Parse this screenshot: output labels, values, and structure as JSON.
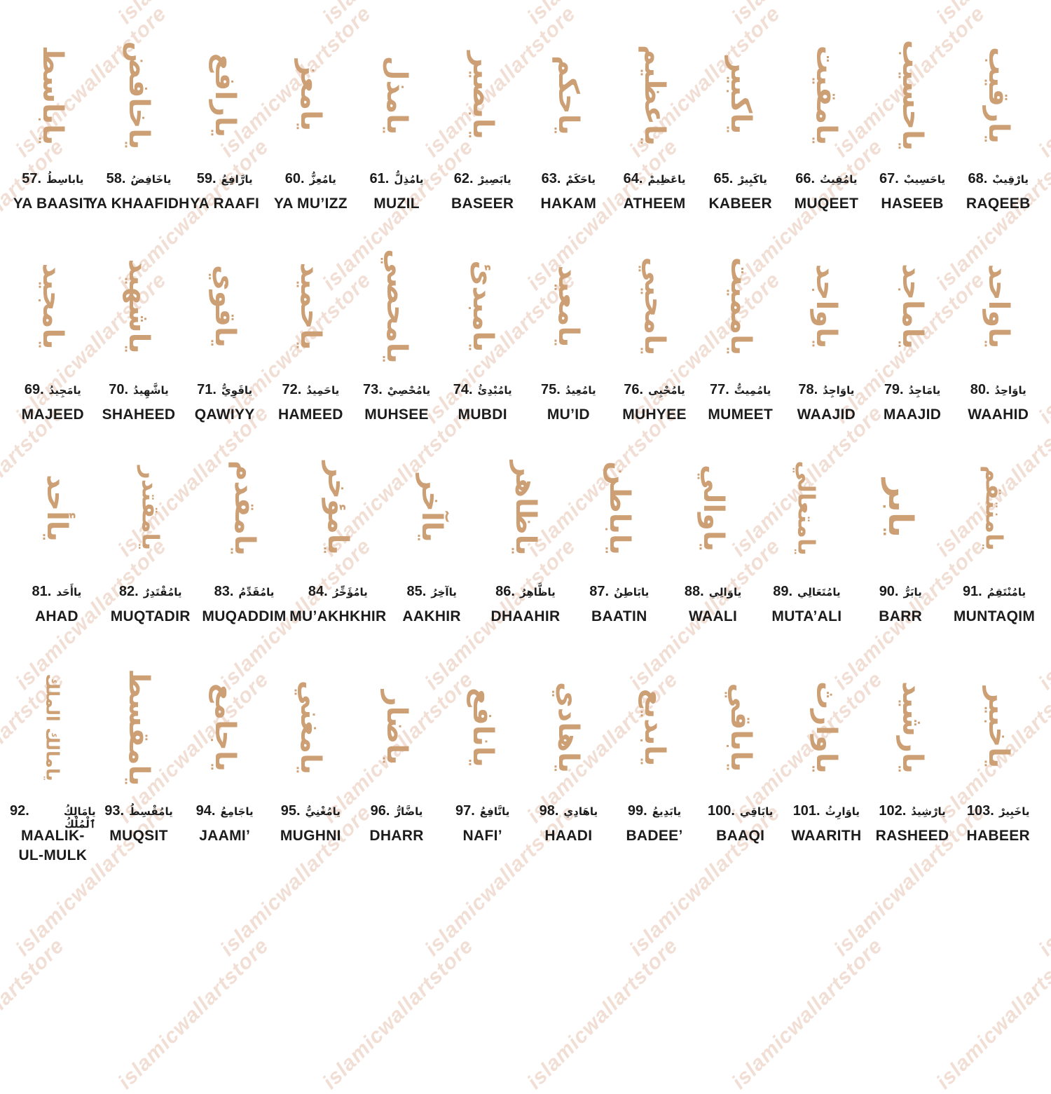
{
  "colors": {
    "calligraphy": "#cd9f74",
    "label_text": "#1c1c1c",
    "watermark": "#f1ded4",
    "background": "#ffffff"
  },
  "watermark": {
    "text": "islamicwallartstore"
  },
  "rows": [
    {
      "items": [
        {
          "num": "57.",
          "arabic": "ياباسِطُ",
          "calligraphy": "ياباسط",
          "latin": "YA BAASIT"
        },
        {
          "num": "58.",
          "arabic": "ياخَافِضُ",
          "calligraphy": "ياخافض",
          "latin": "YA KHAAFIDH"
        },
        {
          "num": "59.",
          "arabic": "يارَّافِعُ",
          "calligraphy": "يارافع",
          "latin": "YA RAAFI"
        },
        {
          "num": "60.",
          "arabic": "يامُعِزُّ",
          "calligraphy": "يامعز",
          "latin": "YA MU’IZZ"
        },
        {
          "num": "61.",
          "arabic": "يامُذِلُّ",
          "calligraphy": "يامذل",
          "latin": "MUZIL"
        },
        {
          "num": "62.",
          "arabic": "يابَصِيرْ",
          "calligraphy": "يابصير",
          "latin": "BASEER"
        },
        {
          "num": "63.",
          "arabic": "ياحَكَمْ",
          "calligraphy": "ياحكم",
          "latin": "HAKAM"
        },
        {
          "num": "64.",
          "arabic": "ياعَظِيمْ",
          "calligraphy": "ياعظيم",
          "latin": "ATHEEM"
        },
        {
          "num": "65.",
          "arabic": "ياكَبِيرْ",
          "calligraphy": "ياكبير",
          "latin": "KABEER"
        },
        {
          "num": "66.",
          "arabic": "يامُقِيتُ",
          "calligraphy": "يامقيت",
          "latin": "MUQEET"
        },
        {
          "num": "67.",
          "arabic": "ياحَسِيبْ",
          "calligraphy": "ياحسيب",
          "latin": "HASEEB"
        },
        {
          "num": "68.",
          "arabic": "يارْقِيبْ",
          "calligraphy": "يارقيب",
          "latin": "RAQEEB"
        }
      ]
    },
    {
      "items": [
        {
          "num": "69.",
          "arabic": "يامَجِيدُ",
          "calligraphy": "يامجيد",
          "latin": "MAJEED"
        },
        {
          "num": "70.",
          "arabic": "ياشَّهِيدُ",
          "calligraphy": "ياشهيد",
          "latin": "SHAHEED"
        },
        {
          "num": "71.",
          "arabic": "ياقَوِيُّ",
          "calligraphy": "ياقوي",
          "latin": "QAWIYY"
        },
        {
          "num": "72.",
          "arabic": "ياحَمِيدُ",
          "calligraphy": "ياحميد",
          "latin": "HAMEED"
        },
        {
          "num": "73.",
          "arabic": "يامُحْصِيْ",
          "calligraphy": "يامحصي",
          "latin": "MUHSEE"
        },
        {
          "num": "74.",
          "arabic": "يامُبْدِئُ",
          "calligraphy": "يامبدئ",
          "latin": "MUBDI"
        },
        {
          "num": "75.",
          "arabic": "يامُعِيدُ",
          "calligraphy": "يامعيد",
          "latin": "MU’ID"
        },
        {
          "num": "76.",
          "arabic": "يامُحْيِى",
          "calligraphy": "يامحيي",
          "latin": "MUHYEE"
        },
        {
          "num": "77.",
          "arabic": "يامُمِيتُّ",
          "calligraphy": "يامميت",
          "latin": "MUMEET"
        },
        {
          "num": "78.",
          "arabic": "ياوَاجِدُ",
          "calligraphy": "ياواجد",
          "latin": "WAAJID"
        },
        {
          "num": "79.",
          "arabic": "يامَاجِدُ",
          "calligraphy": "ياماجد",
          "latin": "MAAJID"
        },
        {
          "num": "80.",
          "arabic": "ياوَاحِدُ",
          "calligraphy": "ياواحد",
          "latin": "WAAHID"
        }
      ]
    },
    {
      "items": [
        {
          "num": "81.",
          "arabic": "ياأَحَد",
          "calligraphy": "ياأحد",
          "latin": "AHAD"
        },
        {
          "num": "82.",
          "arabic": "يامُقْتَدِرٌ",
          "calligraphy": "يامقتدر",
          "latin": "MUQTADIR"
        },
        {
          "num": "83.",
          "arabic": "يامُقَدِّمُ",
          "calligraphy": "يامقدم",
          "latin": "MUQADDIM"
        },
        {
          "num": "84.",
          "arabic": "يامُؤَخِّرُ",
          "calligraphy": "يامؤخر",
          "latin": "MU’AKHKHIR"
        },
        {
          "num": "85.",
          "arabic": "ياآخِرُ",
          "calligraphy": "ياآخر",
          "latin": "AAKHIR"
        },
        {
          "num": "86.",
          "arabic": "ياظَّاهِرُ",
          "calligraphy": "ياظاهر",
          "latin": "DHAAHIR"
        },
        {
          "num": "87.",
          "arabic": "يابَاطِنُ",
          "calligraphy": "ياباطن",
          "latin": "BAATIN"
        },
        {
          "num": "88.",
          "arabic": "ياوَالِي",
          "calligraphy": "ياوالي",
          "latin": "WAALI"
        },
        {
          "num": "89.",
          "arabic": "يامُتَعَالِي",
          "calligraphy": "يامتعالي",
          "latin": "MUTA’ALI"
        },
        {
          "num": "90.",
          "arabic": "يابَرُّ",
          "calligraphy": "يابر",
          "latin": "BARR"
        },
        {
          "num": "91.",
          "arabic": "يامُنْتَقِمُ",
          "calligraphy": "يامنتقم",
          "latin": "MUNTAQIM"
        }
      ]
    },
    {
      "items": [
        {
          "num": "92.",
          "arabic": "يامَالِكُ ٱلْمُلْكُ",
          "calligraphy": "يامالك الملك",
          "latin": "MAALIK-\nUL-MULK"
        },
        {
          "num": "93.",
          "arabic": "يامُقْسِطُ",
          "calligraphy": "يامقسط",
          "latin": "MUQSIT"
        },
        {
          "num": "94.",
          "arabic": "ياجَامِعُ",
          "calligraphy": "ياجامع",
          "latin": "JAAMI’"
        },
        {
          "num": "95.",
          "arabic": "يامُغْنِيُّ",
          "calligraphy": "يامغني",
          "latin": "MUGHNI"
        },
        {
          "num": "96.",
          "arabic": "ياضَّارُّ",
          "calligraphy": "ياضار",
          "latin": "DHARR"
        },
        {
          "num": "97.",
          "arabic": "يانَّافِعُ",
          "calligraphy": "يانافع",
          "latin": "NAFI’"
        },
        {
          "num": "98.",
          "arabic": "ياهَادِي",
          "calligraphy": "ياهادي",
          "latin": "HAADI"
        },
        {
          "num": "99.",
          "arabic": "يابَدِيعُ",
          "calligraphy": "يابديع",
          "latin": "BADEE’"
        },
        {
          "num": "100.",
          "arabic": "يابَاقِي",
          "calligraphy": "ياباقي",
          "latin": "BAAQI"
        },
        {
          "num": "101.",
          "arabic": "ياوَارِثُ",
          "calligraphy": "ياوارث",
          "latin": "WAARITH"
        },
        {
          "num": "102.",
          "arabic": "يارْشِيدُ",
          "calligraphy": "يارشيد",
          "latin": "RASHEED"
        },
        {
          "num": "103.",
          "arabic": "ياخَبِيرْ",
          "calligraphy": "ياخبير",
          "latin": "HABEER"
        }
      ]
    }
  ]
}
